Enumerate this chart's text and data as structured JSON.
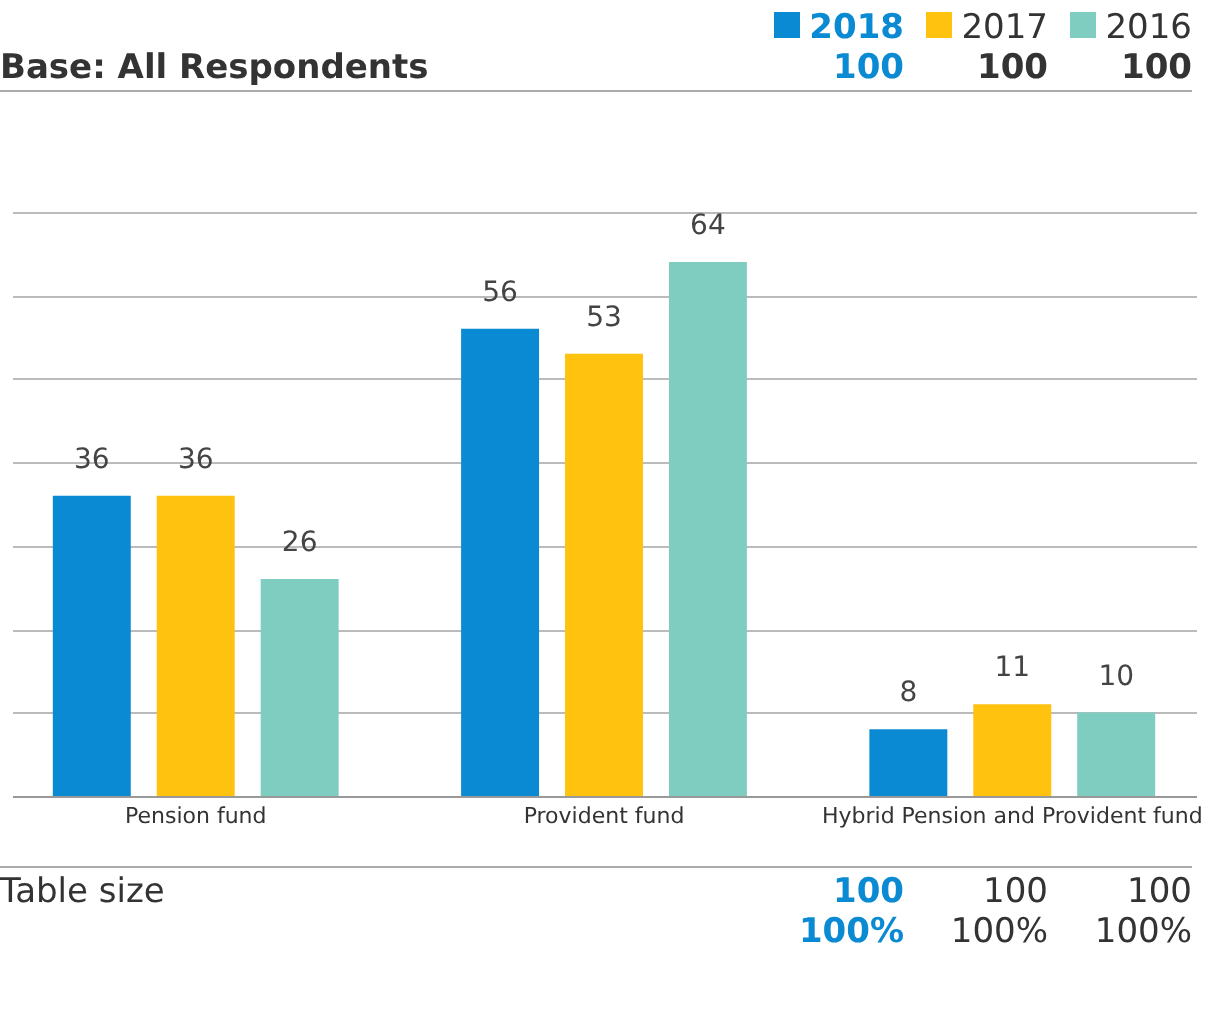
{
  "chart_data": {
    "type": "bar",
    "categories": [
      "Pension fund",
      "Provident fund",
      "Hybrid Pension and Provident fund"
    ],
    "series": [
      {
        "name": "2018",
        "color": "#0a8ad2",
        "values": [
          36,
          56,
          8
        ]
      },
      {
        "name": "2017",
        "color": "#ffc20e",
        "values": [
          36,
          53,
          11
        ]
      },
      {
        "name": "2016",
        "color": "#7ecdc0",
        "values": [
          26,
          64,
          10
        ]
      }
    ],
    "ylim": [
      0,
      70
    ],
    "yticks": [
      {
        "value": 0,
        "label": null
      },
      {
        "value": 10,
        "label": null
      },
      {
        "value": 20,
        "label": null
      },
      {
        "value": 30,
        "label": null
      },
      {
        "value": 40,
        "label": null
      },
      {
        "value": 50,
        "label": null
      },
      {
        "value": 60,
        "label": null
      },
      {
        "value": 70,
        "label": null
      }
    ],
    "grid": "y",
    "tick_labels": "x",
    "legend": "top right",
    "data_labels": true,
    "annotations": [
      "Base: All Respondents",
      "100",
      "100",
      "100",
      "Table size",
      "100",
      "100",
      "100",
      "100%",
      "100%",
      "100%"
    ]
  }
}
